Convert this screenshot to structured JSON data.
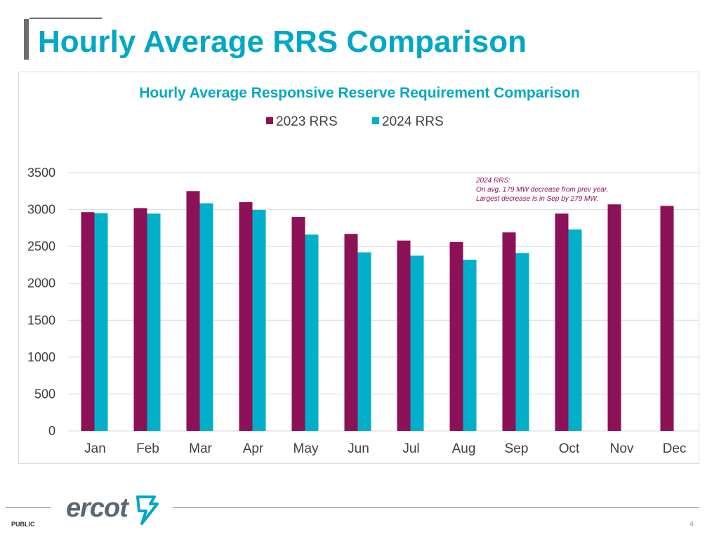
{
  "slide": {
    "title": "Hourly Average RRS Comparison",
    "footer_label": "PUBLIC",
    "page_number": "4",
    "logo_text": "ercot"
  },
  "colors": {
    "title": "#00a8c6",
    "series_2023": "#8c1157",
    "series_2024": "#00afc9",
    "grid": "#d9d9d9",
    "annotation": "#8c1157"
  },
  "chart_data": {
    "type": "bar",
    "title": "Hourly Average Responsive Reserve Requirement Comparison",
    "xlabel": "",
    "ylabel": "",
    "ylim": [
      0,
      3500
    ],
    "yticks": [
      0,
      500,
      1000,
      1500,
      2000,
      2500,
      3000,
      3500
    ],
    "grid": true,
    "legend_position": "top-center",
    "categories": [
      "Jan",
      "Feb",
      "Mar",
      "Apr",
      "May",
      "Jun",
      "Jul",
      "Aug",
      "Sep",
      "Oct",
      "Nov",
      "Dec"
    ],
    "series": [
      {
        "name": "2023 RRS",
        "color": "#8c1157",
        "values": [
          2965,
          3020,
          3250,
          3100,
          2900,
          2670,
          2580,
          2560,
          2690,
          2945,
          3070,
          3050
        ]
      },
      {
        "name": "2024 RRS",
        "color": "#00afc9",
        "values": [
          2950,
          2945,
          3085,
          2995,
          2660,
          2420,
          2375,
          2320,
          2410,
          2730,
          null,
          null
        ]
      }
    ],
    "annotation": [
      "2024 RRS:",
      "On avg. 179 MW decrease from prev year.",
      "Largest decrease is in Sep by 279 MW."
    ]
  }
}
